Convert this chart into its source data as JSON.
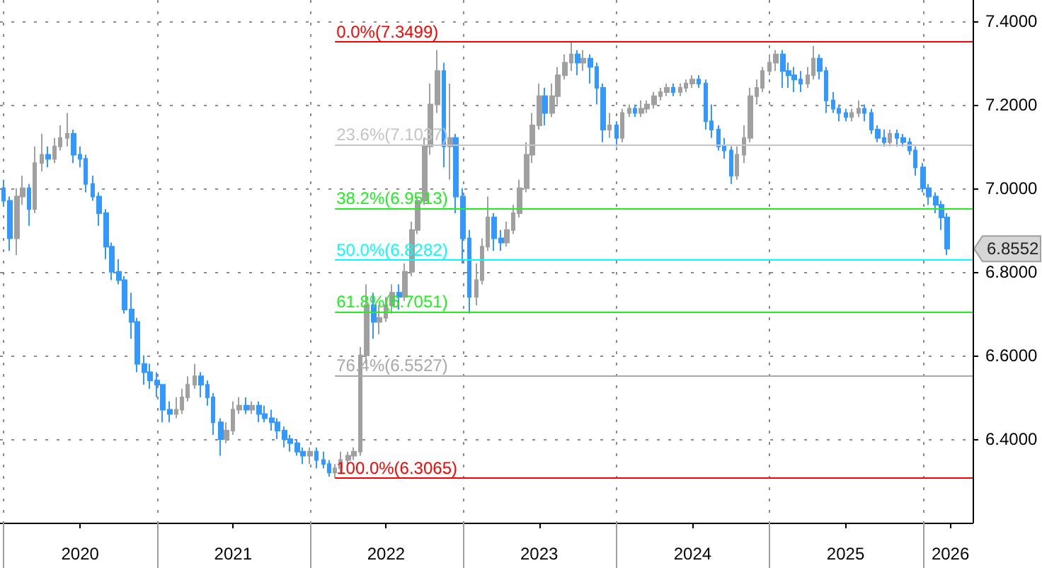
{
  "chart_data": {
    "type": "candlestick",
    "x": [
      "2020-01-01",
      "2020-01-15",
      "2020-02-01",
      "2020-02-15",
      "2020-03-01",
      "2020-03-15",
      "2020-04-01",
      "2020-04-15",
      "2020-05-01",
      "2020-05-15",
      "2020-06-01",
      "2020-06-15",
      "2020-07-01",
      "2020-07-15",
      "2020-08-01",
      "2020-08-15",
      "2020-09-01",
      "2020-09-15",
      "2020-10-01",
      "2020-10-15",
      "2020-11-01",
      "2020-11-15",
      "2020-12-01",
      "2020-12-15",
      "2021-01-01",
      "2021-01-15",
      "2021-02-01",
      "2021-02-15",
      "2021-03-01",
      "2021-03-15",
      "2021-04-01",
      "2021-04-15",
      "2021-05-01",
      "2021-05-15",
      "2021-06-01",
      "2021-06-15",
      "2021-07-01",
      "2021-07-15",
      "2021-08-01",
      "2021-08-15",
      "2021-09-01",
      "2021-09-15",
      "2021-10-01",
      "2021-10-15",
      "2021-11-01",
      "2021-11-15",
      "2021-12-01",
      "2021-12-15",
      "2022-01-01",
      "2022-01-15",
      "2022-02-01",
      "2022-02-15",
      "2022-03-01",
      "2022-03-15",
      "2022-04-01",
      "2022-04-15",
      "2022-05-01",
      "2022-05-15",
      "2022-06-01",
      "2022-06-15",
      "2022-07-01",
      "2022-07-15",
      "2022-08-01",
      "2022-08-15",
      "2022-09-01",
      "2022-09-15",
      "2022-10-01",
      "2022-10-15",
      "2022-11-01",
      "2022-11-15",
      "2022-12-01",
      "2022-12-15",
      "2023-01-01",
      "2023-01-15",
      "2023-02-01",
      "2023-02-15",
      "2023-03-01",
      "2023-03-15",
      "2023-04-01",
      "2023-04-15",
      "2023-05-01",
      "2023-05-15",
      "2023-06-01",
      "2023-06-15",
      "2023-07-01",
      "2023-07-15",
      "2023-08-01",
      "2023-08-15",
      "2023-09-01",
      "2023-09-15",
      "2023-10-01",
      "2023-10-15",
      "2023-11-01",
      "2023-11-15",
      "2023-12-01",
      "2023-12-15",
      "2024-01-01",
      "2024-01-15",
      "2024-02-01",
      "2024-02-15",
      "2024-03-01",
      "2024-03-15",
      "2024-04-01",
      "2024-04-15",
      "2024-05-01",
      "2024-05-15",
      "2024-06-01",
      "2024-06-15",
      "2024-07-01",
      "2024-07-15",
      "2024-08-01",
      "2024-08-15",
      "2024-09-01",
      "2024-09-15",
      "2024-10-01",
      "2024-10-15",
      "2024-11-01",
      "2024-11-15",
      "2024-12-01",
      "2024-12-15",
      "2025-01-01",
      "2025-01-15",
      "2025-02-01",
      "2025-02-15",
      "2025-03-01",
      "2025-03-15",
      "2025-04-01",
      "2025-04-15",
      "2025-05-01",
      "2025-05-15",
      "2025-06-01",
      "2025-06-15",
      "2025-07-01",
      "2025-07-15",
      "2025-08-01",
      "2025-08-15",
      "2025-09-01",
      "2025-09-15",
      "2025-10-01",
      "2025-10-15",
      "2025-11-01",
      "2025-11-15",
      "2025-12-01",
      "2025-12-15",
      "2026-01-01",
      "2026-01-15",
      "2026-02-01",
      "2026-02-15",
      "2026-03-01"
    ],
    "ohlc": [
      [
        7.0,
        7.02,
        6.96,
        6.97
      ],
      [
        6.97,
        6.98,
        6.85,
        6.88
      ],
      [
        6.88,
        7.0,
        6.84,
        6.98
      ],
      [
        6.98,
        7.03,
        6.96,
        7.0
      ],
      [
        7.0,
        7.01,
        6.91,
        6.95
      ],
      [
        6.95,
        7.1,
        6.94,
        7.06
      ],
      [
        7.06,
        7.13,
        7.04,
        7.08
      ],
      [
        7.08,
        7.1,
        7.05,
        7.07
      ],
      [
        7.07,
        7.12,
        7.06,
        7.1
      ],
      [
        7.1,
        7.15,
        7.09,
        7.12
      ],
      [
        7.12,
        7.18,
        7.1,
        7.13
      ],
      [
        7.13,
        7.14,
        7.06,
        7.08
      ],
      [
        7.08,
        7.1,
        7.05,
        7.07
      ],
      [
        7.07,
        7.08,
        6.99,
        7.01
      ],
      [
        7.01,
        7.03,
        6.97,
        6.98
      ],
      [
        6.98,
        6.99,
        6.91,
        6.94
      ],
      [
        6.94,
        6.95,
        6.83,
        6.86
      ],
      [
        6.86,
        6.87,
        6.78,
        6.8
      ],
      [
        6.8,
        6.83,
        6.77,
        6.78
      ],
      [
        6.78,
        6.79,
        6.7,
        6.71
      ],
      [
        6.71,
        6.75,
        6.64,
        6.68
      ],
      [
        6.68,
        6.69,
        6.56,
        6.58
      ],
      [
        6.58,
        6.6,
        6.53,
        6.56
      ],
      [
        6.56,
        6.58,
        6.52,
        6.54
      ],
      [
        6.54,
        6.56,
        6.5,
        6.53
      ],
      [
        6.53,
        6.53,
        6.44,
        6.47
      ],
      [
        6.47,
        6.49,
        6.44,
        6.46
      ],
      [
        6.46,
        6.5,
        6.45,
        6.47
      ],
      [
        6.47,
        6.52,
        6.46,
        6.5
      ],
      [
        6.5,
        6.55,
        6.49,
        6.53
      ],
      [
        6.53,
        6.58,
        6.52,
        6.55
      ],
      [
        6.55,
        6.56,
        6.5,
        6.53
      ],
      [
        6.53,
        6.54,
        6.48,
        6.5
      ],
      [
        6.5,
        6.51,
        6.41,
        6.44
      ],
      [
        6.44,
        6.45,
        6.36,
        6.4
      ],
      [
        6.4,
        6.44,
        6.39,
        6.42
      ],
      [
        6.42,
        6.49,
        6.41,
        6.47
      ],
      [
        6.47,
        6.5,
        6.46,
        6.48
      ],
      [
        6.48,
        6.5,
        6.46,
        6.47
      ],
      [
        6.47,
        6.49,
        6.46,
        6.48
      ],
      [
        6.48,
        6.49,
        6.44,
        6.46
      ],
      [
        6.46,
        6.48,
        6.44,
        6.45
      ],
      [
        6.45,
        6.47,
        6.42,
        6.44
      ],
      [
        6.44,
        6.45,
        6.4,
        6.42
      ],
      [
        6.42,
        6.43,
        6.38,
        6.4
      ],
      [
        6.4,
        6.41,
        6.37,
        6.39
      ],
      [
        6.39,
        6.4,
        6.36,
        6.37
      ],
      [
        6.37,
        6.38,
        6.34,
        6.36
      ],
      [
        6.36,
        6.38,
        6.34,
        6.37
      ],
      [
        6.37,
        6.38,
        6.33,
        6.35
      ],
      [
        6.35,
        6.37,
        6.33,
        6.34
      ],
      [
        6.34,
        6.35,
        6.31,
        6.32
      ],
      [
        6.32,
        6.34,
        6.3065,
        6.33
      ],
      [
        6.33,
        6.37,
        6.32,
        6.35
      ],
      [
        6.35,
        6.37,
        6.34,
        6.36
      ],
      [
        6.36,
        6.38,
        6.35,
        6.37
      ],
      [
        6.37,
        6.62,
        6.36,
        6.6
      ],
      [
        6.6,
        6.77,
        6.58,
        6.72
      ],
      [
        6.72,
        6.75,
        6.64,
        6.68
      ],
      [
        6.68,
        6.72,
        6.65,
        6.69
      ],
      [
        6.69,
        6.74,
        6.68,
        6.72
      ],
      [
        6.72,
        6.77,
        6.7,
        6.75
      ],
      [
        6.75,
        6.77,
        6.71,
        6.74
      ],
      [
        6.74,
        6.82,
        6.73,
        6.8
      ],
      [
        6.8,
        6.92,
        6.79,
        6.9
      ],
      [
        6.9,
        6.98,
        6.89,
        6.97
      ],
      [
        6.97,
        7.12,
        6.96,
        7.1
      ],
      [
        7.1,
        7.25,
        7.08,
        7.2
      ],
      [
        7.2,
        7.33,
        7.18,
        7.28
      ],
      [
        7.28,
        7.3,
        7.05,
        7.1
      ],
      [
        7.1,
        7.25,
        7.02,
        7.12
      ],
      [
        7.12,
        7.13,
        6.94,
        6.98
      ],
      [
        6.98,
        7.0,
        6.82,
        6.88
      ],
      [
        6.88,
        6.9,
        6.7,
        6.74
      ],
      [
        6.74,
        6.82,
        6.72,
        6.78
      ],
      [
        6.78,
        6.88,
        6.77,
        6.86
      ],
      [
        6.86,
        6.98,
        6.85,
        6.93
      ],
      [
        6.93,
        6.94,
        6.85,
        6.88
      ],
      [
        6.88,
        6.9,
        6.85,
        6.87
      ],
      [
        6.87,
        6.92,
        6.86,
        6.9
      ],
      [
        6.9,
        6.96,
        6.89,
        6.94
      ],
      [
        6.94,
        7.02,
        6.93,
        7.0
      ],
      [
        7.0,
        7.11,
        6.99,
        7.08
      ],
      [
        7.08,
        7.18,
        7.06,
        7.15
      ],
      [
        7.15,
        7.25,
        7.14,
        7.22
      ],
      [
        7.22,
        7.24,
        7.15,
        7.18
      ],
      [
        7.18,
        7.25,
        7.17,
        7.22
      ],
      [
        7.22,
        7.29,
        7.2,
        7.27
      ],
      [
        7.27,
        7.32,
        7.26,
        7.3
      ],
      [
        7.3,
        7.3499,
        7.28,
        7.32
      ],
      [
        7.32,
        7.33,
        7.27,
        7.3
      ],
      [
        7.3,
        7.33,
        7.28,
        7.31
      ],
      [
        7.31,
        7.32,
        7.25,
        7.29
      ],
      [
        7.29,
        7.3,
        7.2,
        7.24
      ],
      [
        7.24,
        7.25,
        7.11,
        7.14
      ],
      [
        7.14,
        7.18,
        7.12,
        7.15
      ],
      [
        7.15,
        7.16,
        7.1,
        7.12
      ],
      [
        7.12,
        7.19,
        7.11,
        7.18
      ],
      [
        7.18,
        7.2,
        7.17,
        7.19
      ],
      [
        7.19,
        7.2,
        7.17,
        7.18
      ],
      [
        7.18,
        7.21,
        7.17,
        7.19
      ],
      [
        7.19,
        7.21,
        7.18,
        7.2
      ],
      [
        7.2,
        7.23,
        7.19,
        7.22
      ],
      [
        7.22,
        7.24,
        7.21,
        7.23
      ],
      [
        7.23,
        7.25,
        7.22,
        7.24
      ],
      [
        7.24,
        7.25,
        7.22,
        7.23
      ],
      [
        7.23,
        7.25,
        7.22,
        7.24
      ],
      [
        7.24,
        7.26,
        7.23,
        7.25
      ],
      [
        7.25,
        7.27,
        7.24,
        7.26
      ],
      [
        7.26,
        7.27,
        7.24,
        7.25
      ],
      [
        7.25,
        7.26,
        7.14,
        7.16
      ],
      [
        7.16,
        7.2,
        7.12,
        7.14
      ],
      [
        7.14,
        7.15,
        7.09,
        7.1
      ],
      [
        7.1,
        7.12,
        7.07,
        7.09
      ],
      [
        7.09,
        7.1,
        7.01,
        7.03
      ],
      [
        7.03,
        7.1,
        7.02,
        7.08
      ],
      [
        7.08,
        7.15,
        7.06,
        7.12
      ],
      [
        7.12,
        7.24,
        7.11,
        7.22
      ],
      [
        7.22,
        7.26,
        7.2,
        7.24
      ],
      [
        7.24,
        7.29,
        7.23,
        7.28
      ],
      [
        7.28,
        7.32,
        7.27,
        7.3
      ],
      [
        7.3,
        7.33,
        7.28,
        7.32
      ],
      [
        7.32,
        7.33,
        7.24,
        7.28
      ],
      [
        7.28,
        7.3,
        7.24,
        7.27
      ],
      [
        7.27,
        7.29,
        7.23,
        7.26
      ],
      [
        7.26,
        7.28,
        7.23,
        7.25
      ],
      [
        7.25,
        7.29,
        7.24,
        7.27
      ],
      [
        7.27,
        7.34,
        7.26,
        7.31
      ],
      [
        7.31,
        7.32,
        7.26,
        7.28
      ],
      [
        7.28,
        7.29,
        7.18,
        7.21
      ],
      [
        7.21,
        7.23,
        7.18,
        7.19
      ],
      [
        7.19,
        7.2,
        7.16,
        7.18
      ],
      [
        7.18,
        7.19,
        7.16,
        7.17
      ],
      [
        7.17,
        7.19,
        7.16,
        7.18
      ],
      [
        7.18,
        7.21,
        7.17,
        7.19
      ],
      [
        7.19,
        7.2,
        7.16,
        7.18
      ],
      [
        7.18,
        7.19,
        7.13,
        7.14
      ],
      [
        7.14,
        7.15,
        7.11,
        7.12
      ],
      [
        7.12,
        7.14,
        7.1,
        7.11
      ],
      [
        7.11,
        7.14,
        7.1,
        7.13
      ],
      [
        7.13,
        7.14,
        7.1,
        7.12
      ],
      [
        7.12,
        7.13,
        7.1,
        7.11
      ],
      [
        7.11,
        7.12,
        7.08,
        7.09
      ],
      [
        7.09,
        7.1,
        7.03,
        7.05
      ],
      [
        7.05,
        7.06,
        6.99,
        7.0
      ],
      [
        7.0,
        7.01,
        6.96,
        6.98
      ],
      [
        6.98,
        6.99,
        6.94,
        6.96
      ],
      [
        6.96,
        6.97,
        6.9,
        6.93
      ],
      [
        6.93,
        6.94,
        6.84,
        6.8552
      ]
    ],
    "colors": [
      "#3399ff",
      "#3399ff",
      "#a0a0a0",
      "#a0a0a0",
      "#3399ff",
      "#a0a0a0",
      "#a0a0a0",
      "#3399ff",
      "#a0a0a0",
      "#a0a0a0",
      "#a0a0a0",
      "#3399ff",
      "#3399ff",
      "#3399ff",
      "#3399ff",
      "#3399ff",
      "#3399ff",
      "#3399ff",
      "#3399ff",
      "#3399ff",
      "#3399ff",
      "#3399ff",
      "#3399ff",
      "#3399ff",
      "#3399ff",
      "#3399ff",
      "#3399ff",
      "#a0a0a0",
      "#a0a0a0",
      "#a0a0a0",
      "#a0a0a0",
      "#3399ff",
      "#3399ff",
      "#3399ff",
      "#3399ff",
      "#a0a0a0",
      "#a0a0a0",
      "#a0a0a0",
      "#3399ff",
      "#a0a0a0",
      "#3399ff",
      "#3399ff",
      "#3399ff",
      "#3399ff",
      "#3399ff",
      "#3399ff",
      "#3399ff",
      "#3399ff",
      "#a0a0a0",
      "#3399ff",
      "#3399ff",
      "#3399ff",
      "#a0a0a0",
      "#a0a0a0",
      "#a0a0a0",
      "#a0a0a0",
      "#a0a0a0",
      "#a0a0a0",
      "#3399ff",
      "#a0a0a0",
      "#a0a0a0",
      "#a0a0a0",
      "#3399ff",
      "#a0a0a0",
      "#a0a0a0",
      "#a0a0a0",
      "#a0a0a0",
      "#a0a0a0",
      "#a0a0a0",
      "#3399ff",
      "#a0a0a0",
      "#3399ff",
      "#3399ff",
      "#3399ff",
      "#a0a0a0",
      "#a0a0a0",
      "#a0a0a0",
      "#3399ff",
      "#3399ff",
      "#a0a0a0",
      "#a0a0a0",
      "#a0a0a0",
      "#a0a0a0",
      "#a0a0a0",
      "#a0a0a0",
      "#3399ff",
      "#a0a0a0",
      "#a0a0a0",
      "#a0a0a0",
      "#a0a0a0",
      "#3399ff",
      "#a0a0a0",
      "#3399ff",
      "#3399ff",
      "#3399ff",
      "#a0a0a0",
      "#3399ff",
      "#a0a0a0",
      "#a0a0a0",
      "#3399ff",
      "#a0a0a0",
      "#a0a0a0",
      "#a0a0a0",
      "#a0a0a0",
      "#a0a0a0",
      "#3399ff",
      "#a0a0a0",
      "#a0a0a0",
      "#a0a0a0",
      "#3399ff",
      "#3399ff",
      "#3399ff",
      "#3399ff",
      "#3399ff",
      "#3399ff",
      "#a0a0a0",
      "#a0a0a0",
      "#a0a0a0",
      "#a0a0a0",
      "#a0a0a0",
      "#a0a0a0",
      "#a0a0a0",
      "#3399ff",
      "#3399ff",
      "#3399ff",
      "#3399ff",
      "#a0a0a0",
      "#a0a0a0",
      "#3399ff",
      "#3399ff",
      "#3399ff",
      "#3399ff",
      "#3399ff",
      "#a0a0a0",
      "#a0a0a0",
      "#3399ff",
      "#3399ff",
      "#3399ff",
      "#3399ff",
      "#a0a0a0",
      "#3399ff",
      "#3399ff",
      "#3399ff",
      "#3399ff",
      "#3399ff",
      "#3399ff",
      "#3399ff",
      "#3399ff",
      "#3399ff"
    ],
    "xlim": [
      "2019-12-23",
      "2026-04-30"
    ],
    "ylim": [
      6.2,
      7.45
    ],
    "xticks": [
      {
        "value": "2020-01-01",
        "label": null
      },
      {
        "value": "2020-07-01",
        "label": "2020"
      },
      {
        "value": "2021-01-01",
        "label": null
      },
      {
        "value": "2021-07-01",
        "label": "2021"
      },
      {
        "value": "2022-01-01",
        "label": null
      },
      {
        "value": "2022-07-01",
        "label": "2022"
      },
      {
        "value": "2023-01-01",
        "label": null
      },
      {
        "value": "2023-07-01",
        "label": "2023"
      },
      {
        "value": "2024-01-01",
        "label": null
      },
      {
        "value": "2024-07-01",
        "label": "2024"
      },
      {
        "value": "2025-01-01",
        "label": null
      },
      {
        "value": "2025-07-01",
        "label": "2025"
      },
      {
        "value": "2026-01-01",
        "label": null
      },
      {
        "value": "2026-03-08",
        "label": "2026"
      }
    ],
    "yticks": [
      {
        "value": 6.4,
        "label": "6.4000"
      },
      {
        "value": 6.6,
        "label": "6.6000"
      },
      {
        "value": 6.8,
        "label": "6.8000"
      },
      {
        "value": 7.0,
        "label": "7.0000"
      },
      {
        "value": 7.2,
        "label": "7.2000"
      },
      {
        "value": 7.4,
        "label": "7.4000"
      }
    ],
    "grid": true,
    "ref_lines": [
      {
        "axis": "y",
        "value": 7.3499,
        "label": "0.0%(7.3499)",
        "color": "#ff0000"
      },
      {
        "axis": "y",
        "value": 7.1037,
        "label": "23.6%(7.1037)",
        "color": "#c4c4c4"
      },
      {
        "axis": "y",
        "value": 6.9513,
        "label": "38.2%(6.9513)",
        "color": "#22ee22"
      },
      {
        "axis": "y",
        "value": 6.8282,
        "label": "50.0%(6.8282)",
        "color": "#00ffff"
      },
      {
        "axis": "y",
        "value": 6.7051,
        "label": "61.8%(6.7051)",
        "color": "#22ee22"
      },
      {
        "axis": "y",
        "value": 6.5527,
        "label": "76.4%(6.5527)",
        "color": "#a8a8a8"
      },
      {
        "axis": "y",
        "value": 6.3065,
        "label": "100.0%(6.3065)",
        "color": "#ff0000"
      }
    ],
    "annotations": [
      "6.8552"
    ]
  }
}
